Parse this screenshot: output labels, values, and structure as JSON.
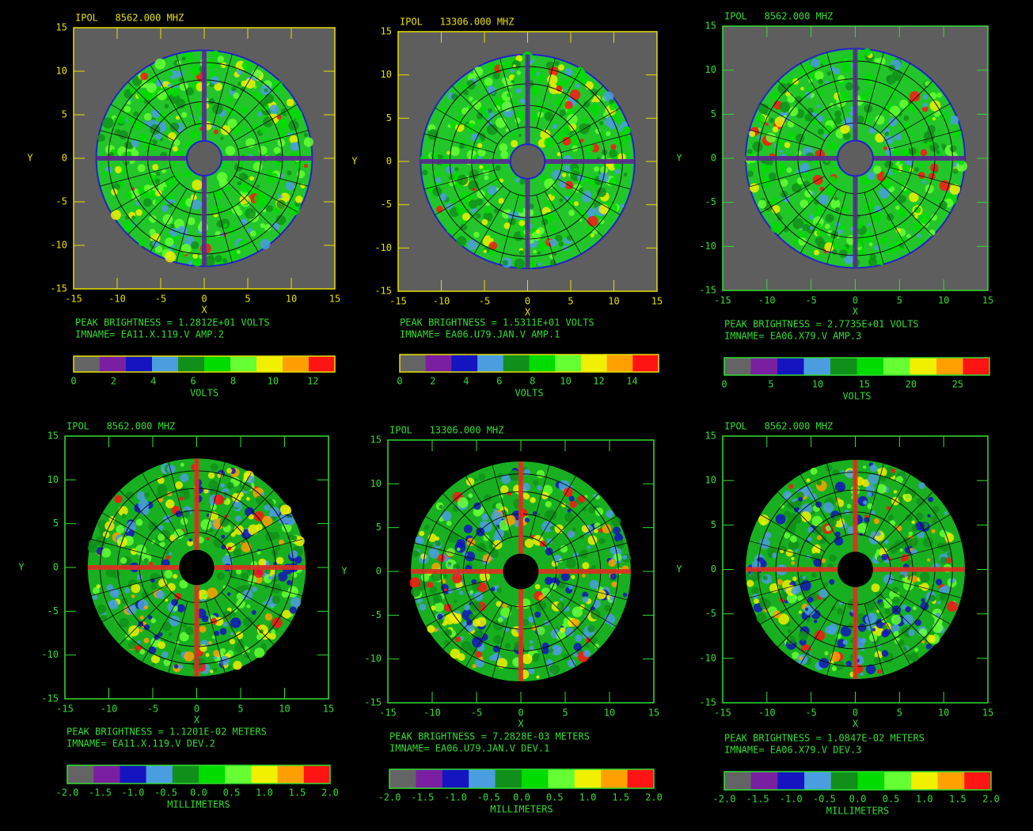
{
  "colorbar_colors": [
    "#646464",
    "#7a1fa2",
    "#1414c0",
    "#4a9ee0",
    "#10901a",
    "#00dc00",
    "#66ff33",
    "#f0f000",
    "#ffa000",
    "#ff1414"
  ],
  "panels": [
    {
      "header": "IPOL   8562.000 MHZ",
      "frame_color": "#e6e000",
      "label_color": "#e6e000",
      "background": "#5e5e5e",
      "xlim": [
        -15,
        15
      ],
      "ylim": [
        -15,
        15
      ],
      "xticks": [
        -15,
        -10,
        -5,
        0,
        5,
        10,
        15
      ],
      "yticks": [
        -15,
        -10,
        -5,
        0,
        5,
        10,
        15
      ],
      "xlabel": "X",
      "ylabel": "Y",
      "peak": "PEAK BRIGHTNESS = 1.2812E+01 VOLTS",
      "imname": "IMNAME= EA11.X.119.V AMP.2",
      "clim": [
        0,
        13.1
      ],
      "cticks": [
        0,
        2,
        4,
        6,
        8,
        10,
        12
      ],
      "clabel": "VOLTS"
    },
    {
      "header": "IPOL   13306.000 MHZ",
      "frame_color": "#e6e000",
      "label_color": "#e6e000",
      "background": "#5e5e5e",
      "xlim": [
        -15,
        15
      ],
      "ylim": [
        -15,
        15
      ],
      "xticks": [
        -15,
        -10,
        -5,
        0,
        5,
        10,
        15
      ],
      "yticks": [
        -15,
        -10,
        -5,
        0,
        5,
        10,
        15
      ],
      "xlabel": "X",
      "ylabel": "Y",
      "peak": "PEAK BRIGHTNESS = 1.5311E+01 VOLTS",
      "imname": "IMNAME= EA06.U79.JAN.V AMP.1",
      "clim": [
        0,
        15.6
      ],
      "cticks": [
        0,
        2,
        4,
        6,
        8,
        10,
        12,
        14
      ],
      "clabel": "VOLTS"
    },
    {
      "header": "IPOL   8562.000 MHZ",
      "frame_color": "#33dd33",
      "label_color": "#33dd33",
      "background": "#5e5e5e",
      "xlim": [
        -15,
        15
      ],
      "ylim": [
        -15,
        15
      ],
      "xticks": [
        -15,
        -10,
        -5,
        0,
        5,
        10,
        15
      ],
      "yticks": [
        -15,
        -10,
        -5,
        0,
        5,
        10,
        15
      ],
      "xlabel": "X",
      "ylabel": "Y",
      "peak": "PEAK BRIGHTNESS = 2.7735E+01 VOLTS",
      "imname": "IMNAME= EA06.X79.V AMP.3",
      "clim": [
        0,
        28.4
      ],
      "cticks": [
        0,
        5,
        10,
        15,
        20,
        25
      ],
      "clabel": "VOLTS"
    },
    {
      "header": "IPOL   8562.000 MHZ",
      "frame_color": "#33dd33",
      "label_color": "#33dd33",
      "background": "#000000",
      "xlim": [
        -15,
        15
      ],
      "ylim": [
        -15,
        15
      ],
      "xticks": [
        -15,
        -10,
        -5,
        0,
        5,
        10,
        15
      ],
      "yticks": [
        -15,
        -10,
        -5,
        0,
        5,
        10,
        15
      ],
      "xlabel": "X",
      "ylabel": "Y",
      "peak": "PEAK BRIGHTNESS = 1.1201E-02 METERS",
      "imname": "IMNAME= EA11.X.119.V DEV.2",
      "clim": [
        -2,
        2
      ],
      "cticks": [
        {
          "value": -2,
          "label": "-2.0"
        },
        {
          "value": -1.5,
          "label": "-1.5"
        },
        {
          "value": -1,
          "label": "-1.0"
        },
        {
          "value": -0.5,
          "label": "-0.5"
        },
        {
          "value": 0,
          "label": "0.0"
        },
        {
          "value": 0.5,
          "label": "0.5"
        },
        {
          "value": 1,
          "label": "1.0"
        },
        {
          "value": 1.5,
          "label": "1.5"
        },
        {
          "value": 2,
          "label": "2.0"
        }
      ],
      "clabel": "MILLIMETERS"
    },
    {
      "header": "IPOL   13306.000 MHZ",
      "frame_color": "#33dd33",
      "label_color": "#33dd33",
      "background": "#000000",
      "xlim": [
        -15,
        15
      ],
      "ylim": [
        -15,
        15
      ],
      "xticks": [
        -15,
        -10,
        -5,
        0,
        5,
        10,
        15
      ],
      "yticks": [
        -15,
        -10,
        -5,
        0,
        5,
        10,
        15
      ],
      "xlabel": "X",
      "ylabel": "Y",
      "peak": "PEAK BRIGHTNESS = 7.2828E-03 METERS",
      "imname": "IMNAME= EA06.U79.JAN.V DEV.1",
      "clim": [
        -2,
        2
      ],
      "cticks": [
        {
          "value": -2,
          "label": "-2.0"
        },
        {
          "value": -1.5,
          "label": "-1.5"
        },
        {
          "value": -1,
          "label": "-1.0"
        },
        {
          "value": -0.5,
          "label": "-0.5"
        },
        {
          "value": 0,
          "label": "0.0"
        },
        {
          "value": 0.5,
          "label": "0.5"
        },
        {
          "value": 1,
          "label": "1.0"
        },
        {
          "value": 1.5,
          "label": "1.5"
        },
        {
          "value": 2,
          "label": "2.0"
        }
      ],
      "clabel": "MILLIMETERS"
    },
    {
      "header": "IPOL   8562.000 MHZ",
      "frame_color": "#33dd33",
      "label_color": "#33dd33",
      "background": "#000000",
      "xlim": [
        -15,
        15
      ],
      "ylim": [
        -15,
        15
      ],
      "xticks": [
        -15,
        -10,
        -5,
        0,
        5,
        10,
        15
      ],
      "yticks": [
        -15,
        -10,
        -5,
        0,
        5,
        10,
        15
      ],
      "xlabel": "X",
      "ylabel": "Y",
      "peak": "PEAK BRIGHTNESS = 1.0847E-02 METERS",
      "imname": "IMNAME= EA06.X79.V DEV.3",
      "clim": [
        -2,
        2
      ],
      "cticks": [
        {
          "value": -2,
          "label": "-2.0"
        },
        {
          "value": -1.5,
          "label": "-1.5"
        },
        {
          "value": -1,
          "label": "-1.0"
        },
        {
          "value": -0.5,
          "label": "-0.5"
        },
        {
          "value": 0,
          "label": "0.0"
        },
        {
          "value": 0.5,
          "label": "0.5"
        },
        {
          "value": 1,
          "label": "1.0"
        },
        {
          "value": 1.5,
          "label": "1.5"
        },
        {
          "value": 2,
          "label": "2.0"
        }
      ],
      "clabel": "MILLIMETERS"
    }
  ]
}
